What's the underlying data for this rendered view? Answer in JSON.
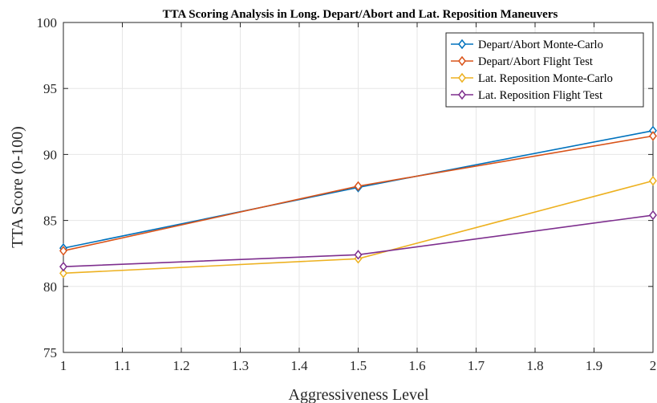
{
  "chart_data": {
    "type": "line",
    "title": "TTA Scoring Analysis in Long. Depart/Abort and Lat. Reposition Maneuvers",
    "xlabel": "Aggressiveness Level",
    "ylabel": "TTA Score (0-100)",
    "xlim": [
      1,
      2
    ],
    "ylim": [
      75,
      100
    ],
    "xticks": [
      1,
      1.1,
      1.2,
      1.3,
      1.4,
      1.5,
      1.6,
      1.7,
      1.8,
      1.9,
      2
    ],
    "xtick_labels": [
      "1",
      "1.1",
      "1.2",
      "1.3",
      "1.4",
      "1.5",
      "1.6",
      "1.7",
      "1.8",
      "1.9",
      "2"
    ],
    "yticks": [
      75,
      80,
      85,
      90,
      95,
      100
    ],
    "ytick_labels": [
      "75",
      "80",
      "85",
      "90",
      "95",
      "100"
    ],
    "grid": true,
    "legend_position": "top-right",
    "x": [
      1,
      1.5,
      2
    ],
    "series": [
      {
        "name": "Depart/Abort Monte-Carlo",
        "values": [
          82.9,
          87.5,
          91.8
        ],
        "color": "#0072BD",
        "marker": "diamond"
      },
      {
        "name": "Depart/Abort Flight Test",
        "values": [
          82.7,
          87.6,
          91.4
        ],
        "color": "#D95319",
        "marker": "diamond"
      },
      {
        "name": "Lat. Reposition Monte-Carlo",
        "values": [
          81.0,
          82.1,
          88.0
        ],
        "color": "#EDB120",
        "marker": "diamond"
      },
      {
        "name": "Lat. Reposition Flight Test",
        "values": [
          81.5,
          82.4,
          85.4
        ],
        "color": "#7E2F8E",
        "marker": "diamond"
      }
    ]
  }
}
